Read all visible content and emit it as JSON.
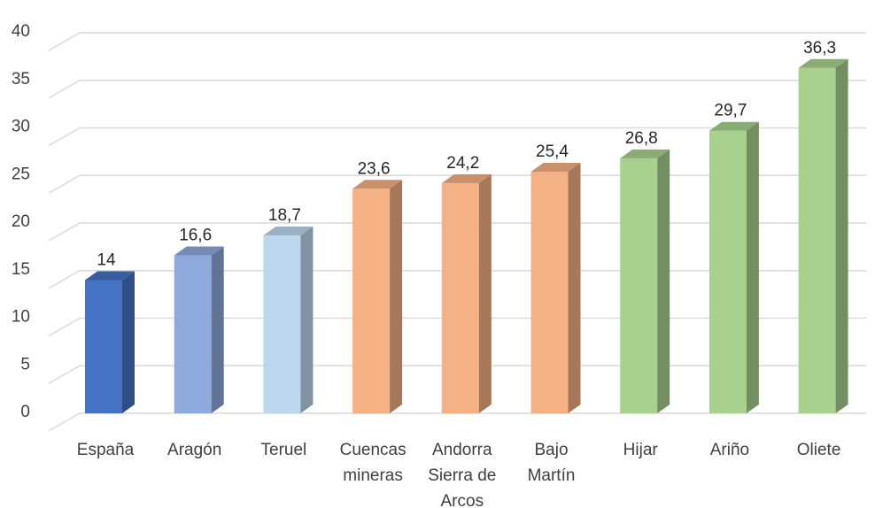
{
  "chart_data": {
    "type": "bar",
    "title": "",
    "xlabel": "",
    "ylabel": "",
    "ylim": [
      0,
      40
    ],
    "yticks": [
      0,
      5,
      10,
      15,
      20,
      25,
      30,
      35,
      40
    ],
    "yticks_text": [
      "0",
      "5",
      "10",
      "15",
      "20",
      "25",
      "30",
      "35",
      "40"
    ],
    "grid": true,
    "legend": "none",
    "categories": [
      [
        "España"
      ],
      [
        "Aragón"
      ],
      [
        "Teruel"
      ],
      [
        "Cuencas",
        "mineras"
      ],
      [
        "Andorra",
        "Sierra de",
        "Arcos"
      ],
      [
        "Bajo",
        "Martín"
      ],
      [
        "Hijar"
      ],
      [
        "Ariño"
      ],
      [
        "Oliete"
      ]
    ],
    "values": [
      14,
      16.6,
      18.7,
      23.6,
      24.2,
      25.4,
      26.8,
      29.7,
      36.3
    ],
    "value_labels": [
      "14",
      "16,6",
      "18,7",
      "23,6",
      "24,2",
      "25,4",
      "26,8",
      "29,7",
      "36,3"
    ],
    "colors": [
      "#4472c4",
      "#8faadc",
      "#bdd7ee",
      "#f4b183",
      "#f4b183",
      "#f4b183",
      "#a9d18e",
      "#a9d18e",
      "#a9d18e"
    ]
  }
}
